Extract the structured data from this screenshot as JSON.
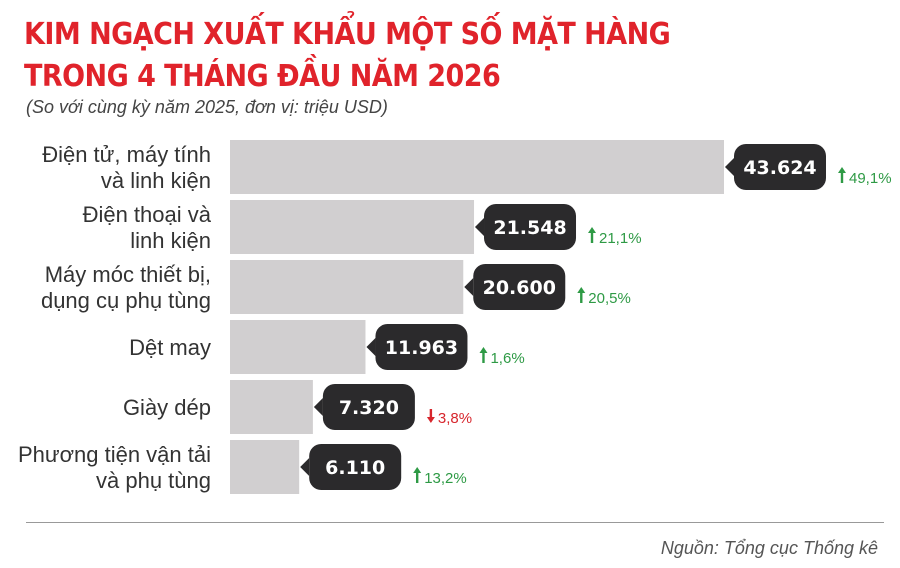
{
  "title_line1": "KIM NGẠCH XUẤT KHẨU MỘT SỐ MẶT HÀNG",
  "title_line2": "TRONG 4 THÁNG ĐẦU NĂM 2026",
  "subtitle": "(So với cùng kỳ năm 2025, đơn vị: triệu USD)",
  "source": "Nguồn: Tổng cục Thống kê",
  "colors": {
    "title": "#e0232b",
    "bar": "#d1cfd0",
    "value_bubble": "#2b2a2c",
    "increase": "#2e9a45",
    "decrease": "#d7262d"
  },
  "chart_data": {
    "type": "bar",
    "orientation": "horizontal",
    "categories": [
      [
        "Điện tử, máy tính",
        "và linh kiện"
      ],
      [
        "Điện thoại và",
        "linh kiện"
      ],
      [
        "Máy móc thiết bị,",
        "dụng cụ phụ tùng"
      ],
      [
        "Dệt may"
      ],
      [
        "Giày dép"
      ],
      [
        "Phương tiện vận tải",
        "và phụ tùng"
      ]
    ],
    "values": [
      43624,
      21548,
      20600,
      11963,
      7320,
      6110
    ],
    "value_labels": [
      "43.624",
      "21.548",
      "20.600",
      "11.963",
      "7.320",
      "6.110"
    ],
    "changes": [
      {
        "label": "49,1%",
        "direction": "up"
      },
      {
        "label": "21,1%",
        "direction": "up"
      },
      {
        "label": "20,5%",
        "direction": "up"
      },
      {
        "label": "1,6%",
        "direction": "up"
      },
      {
        "label": "3,8%",
        "direction": "down"
      },
      {
        "label": "13,2%",
        "direction": "up"
      }
    ],
    "xlim": [
      0,
      43624
    ],
    "grid": false,
    "legend": "none"
  }
}
